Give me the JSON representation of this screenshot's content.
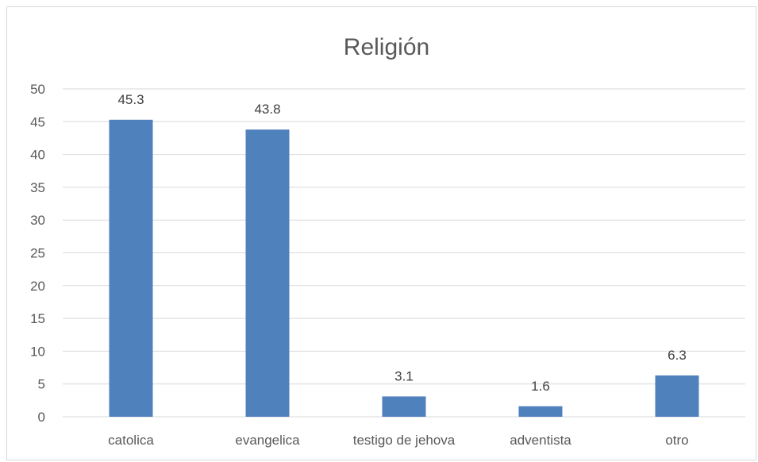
{
  "chart_data": {
    "type": "bar",
    "title": "Religión",
    "xlabel": "",
    "ylabel": "",
    "categories": [
      "catolica",
      "evangelica",
      "testigo de jehova",
      "adventista",
      "otro"
    ],
    "values": [
      45.3,
      43.8,
      3.1,
      1.6,
      6.3
    ],
    "ylim": [
      0,
      50
    ],
    "yticks": [
      0,
      5,
      10,
      15,
      20,
      25,
      30,
      35,
      40,
      45,
      50
    ],
    "grid": true,
    "legend": "none",
    "bar_color": "#4f81bd",
    "grid_color": "#d9d9d9"
  }
}
